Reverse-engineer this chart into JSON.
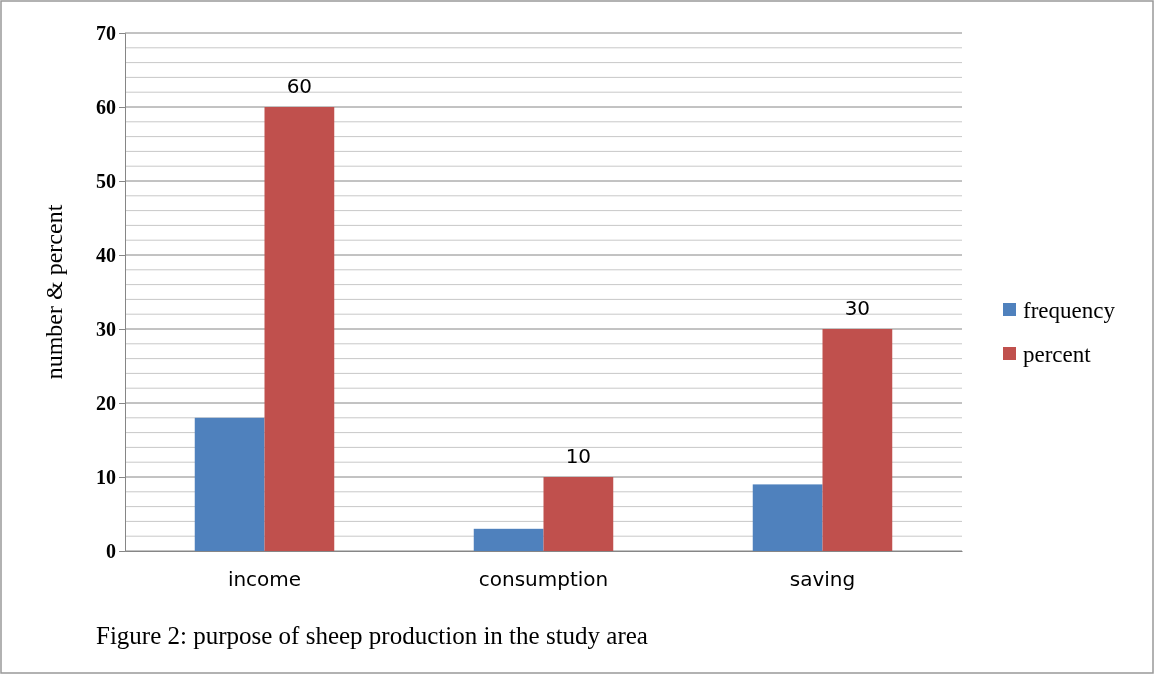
{
  "chart_data": {
    "type": "bar",
    "ylabel": "number & percent",
    "categories": [
      "income",
      "consumption",
      "saving"
    ],
    "series": [
      {
        "name": "frequency",
        "color": "#4f81bd",
        "values": [
          18,
          3,
          9
        ]
      },
      {
        "name": "percent",
        "color": "#c0504d",
        "values": [
          60,
          10,
          30
        ],
        "value_labels": [
          "60",
          "10",
          "30"
        ]
      }
    ],
    "ylim": [
      0,
      70
    ],
    "yticks": [
      0,
      {
        "value": 2,
        "label": null
      },
      {
        "value": 4,
        "label": null
      },
      {
        "value": 6,
        "label": null
      },
      {
        "value": 8,
        "label": null
      },
      10,
      {
        "value": 12,
        "label": null
      },
      {
        "value": 14,
        "label": null
      },
      {
        "value": 16,
        "label": null
      },
      {
        "value": 18,
        "label": null
      },
      20,
      {
        "value": 22,
        "label": null
      },
      {
        "value": 24,
        "label": null
      },
      {
        "value": 26,
        "label": null
      },
      {
        "value": 28,
        "label": null
      },
      30,
      {
        "value": 32,
        "label": null
      },
      {
        "value": 34,
        "label": null
      },
      {
        "value": 36,
        "label": null
      },
      {
        "value": 38,
        "label": null
      },
      40,
      {
        "value": 42,
        "label": null
      },
      {
        "value": 44,
        "label": null
      },
      {
        "value": 46,
        "label": null
      },
      {
        "value": 48,
        "label": null
      },
      50,
      {
        "value": 52,
        "label": null
      },
      {
        "value": 54,
        "label": null
      },
      {
        "value": 56,
        "label": null
      },
      {
        "value": 58,
        "label": null
      },
      60,
      {
        "value": 62,
        "label": null
      },
      {
        "value": 64,
        "label": null
      },
      {
        "value": 66,
        "label": null
      },
      {
        "value": 68,
        "label": null
      },
      70
    ],
    "grid": true,
    "legend": "right",
    "annotations": [
      "Figure 2: purpose of sheep production in the study area"
    ]
  }
}
